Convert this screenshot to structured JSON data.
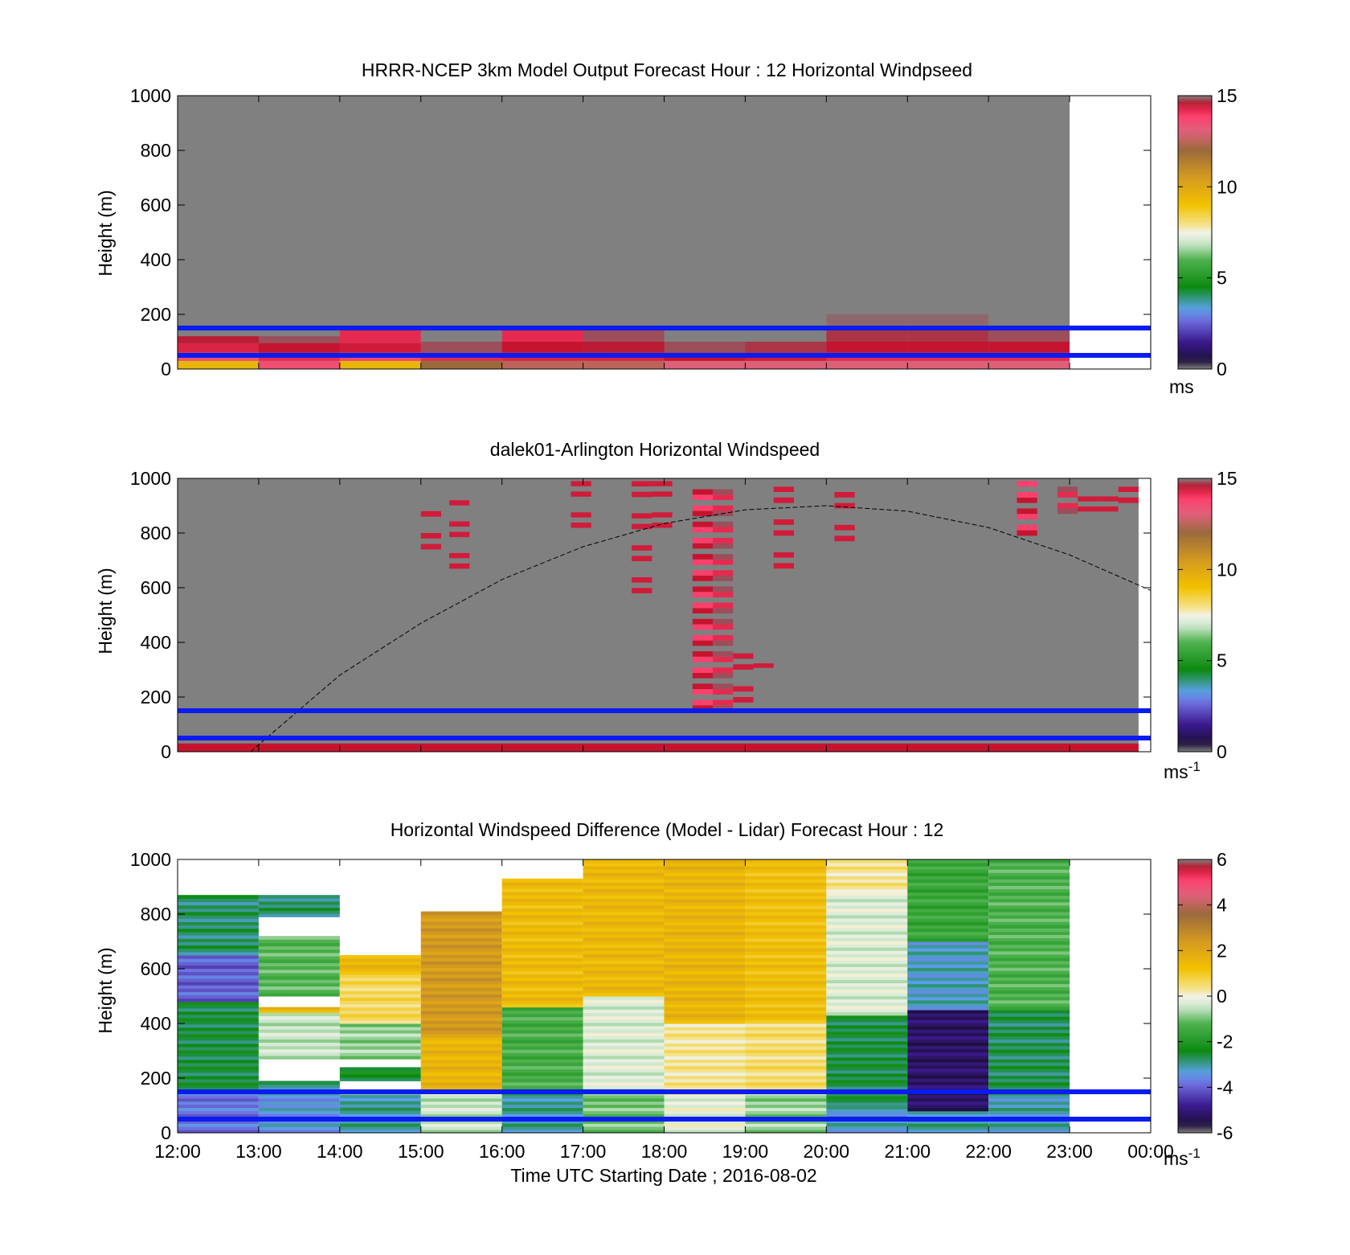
{
  "chart_data": [
    {
      "type": "heatmap",
      "title": "HRRR-NCEP 3km Model Output   Forecast Hour : 12 Horizontal Windpseed",
      "ylabel": "Height (m)",
      "xlabel": "",
      "ylim": [
        0,
        1000
      ],
      "yticks": [
        "0",
        "200",
        "400",
        "600",
        "800",
        "1000"
      ],
      "xlim_hours": [
        12,
        24
      ],
      "xticks": [],
      "colorbar": {
        "ticks": [
          "0",
          "5",
          "10",
          "15"
        ],
        "unit": "ms",
        "unit_sup": "",
        "range": [
          0,
          15
        ]
      },
      "reference_lines_m": [
        50,
        150
      ],
      "background_value": "no data above model levels (grey)",
      "model_columns": [
        {
          "hour": 12,
          "levels": [
            {
              "top": 30,
              "v": 9.5
            },
            {
              "top": 60,
              "v": 13.5
            },
            {
              "top": 95,
              "v": 14.3
            },
            {
              "top": 120,
              "v": 14.6
            }
          ]
        },
        {
          "hour": 13,
          "levels": [
            {
              "top": 30,
              "v": 13.5
            },
            {
              "top": 60,
              "v": 14.2
            },
            {
              "top": 95,
              "v": 14.5
            },
            {
              "top": 120,
              "v": 14.8
            }
          ]
        },
        {
          "hour": 14,
          "levels": [
            {
              "top": 30,
              "v": 9.5
            },
            {
              "top": 60,
              "v": 13.8
            },
            {
              "top": 95,
              "v": 14.4
            },
            {
              "top": 145,
              "v": 14.2
            }
          ]
        },
        {
          "hour": 15,
          "levels": [
            {
              "top": 30,
              "v": 12
            },
            {
              "top": 60,
              "v": 14.2
            },
            {
              "top": 100,
              "v": 14.8
            }
          ]
        },
        {
          "hour": 16,
          "levels": [
            {
              "top": 30,
              "v": 12.5
            },
            {
              "top": 60,
              "v": 14.3
            },
            {
              "top": 100,
              "v": 14.5
            },
            {
              "top": 145,
              "v": 14.2
            }
          ]
        },
        {
          "hour": 17,
          "levels": [
            {
              "top": 30,
              "v": 12.5
            },
            {
              "top": 60,
              "v": 14.3
            },
            {
              "top": 100,
              "v": 14.6
            },
            {
              "top": 145,
              "v": 14.8
            },
            {
              "top": 180,
              "v": 15
            }
          ]
        },
        {
          "hour": 18,
          "levels": [
            {
              "top": 30,
              "v": 13
            },
            {
              "top": 60,
              "v": 14.5
            },
            {
              "top": 100,
              "v": 14.8
            },
            {
              "top": 145,
              "v": 15
            }
          ]
        },
        {
          "hour": 19,
          "levels": [
            {
              "top": 30,
              "v": 13
            },
            {
              "top": 60,
              "v": 14.4
            },
            {
              "top": 100,
              "v": 14.7
            },
            {
              "top": 145,
              "v": 15
            }
          ]
        },
        {
          "hour": 20,
          "levels": [
            {
              "top": 30,
              "v": 13
            },
            {
              "top": 60,
              "v": 14.2
            },
            {
              "top": 100,
              "v": 14.5
            },
            {
              "top": 145,
              "v": 14.7
            },
            {
              "top": 200,
              "v": 14.9
            },
            {
              "top": 300,
              "v": 15
            }
          ]
        },
        {
          "hour": 21,
          "levels": [
            {
              "top": 30,
              "v": 13
            },
            {
              "top": 60,
              "v": 14.2
            },
            {
              "top": 100,
              "v": 14.5
            },
            {
              "top": 145,
              "v": 14.7
            },
            {
              "top": 200,
              "v": 14.9
            },
            {
              "top": 300,
              "v": 15
            }
          ]
        },
        {
          "hour": 22,
          "levels": [
            {
              "top": 30,
              "v": 13
            },
            {
              "top": 60,
              "v": 14.2
            },
            {
              "top": 100,
              "v": 14.5
            },
            {
              "top": 145,
              "v": 14.8
            }
          ]
        }
      ]
    },
    {
      "type": "heatmap",
      "title": "dalek01-Arlington  Horizontal Windspeed",
      "ylabel": "Height (m)",
      "xlabel": "",
      "ylim": [
        0,
        1000
      ],
      "yticks": [
        "0",
        "200",
        "400",
        "600",
        "800",
        "1000"
      ],
      "xlim_hours": [
        12,
        24
      ],
      "xticks": [],
      "colorbar": {
        "ticks": [
          "0",
          "5",
          "10",
          "15"
        ],
        "unit": "ms",
        "unit_sup": "-1",
        "range": [
          0,
          15
        ]
      },
      "reference_lines_m": [
        50,
        150
      ],
      "background": "missing data (grey), lidar ends at 23:50",
      "high_wind_streaks": [
        {
          "t0": 18.35,
          "t1": 18.6,
          "h0": 150,
          "h1": 980,
          "v": 14.5
        },
        {
          "t0": 18.6,
          "t1": 18.85,
          "h0": 150,
          "h1": 980,
          "v": 14.8
        },
        {
          "t0": 18.85,
          "t1": 19.1,
          "h0": 160,
          "h1": 380,
          "v": 15
        },
        {
          "t0": 19.1,
          "t1": 19.35,
          "h0": 290,
          "h1": 340,
          "v": 15
        },
        {
          "t0": 15.0,
          "t1": 15.25,
          "h0": 720,
          "h1": 880,
          "v": 15
        },
        {
          "t0": 15.35,
          "t1": 15.6,
          "h0": 650,
          "h1": 920,
          "v": 15
        },
        {
          "t0": 16.85,
          "t1": 17.1,
          "h0": 800,
          "h1": 990,
          "v": 15
        },
        {
          "t0": 17.6,
          "t1": 17.85,
          "h0": 560,
          "h1": 990,
          "v": 15
        },
        {
          "t0": 17.85,
          "t1": 18.1,
          "h0": 800,
          "h1": 990,
          "v": 15
        },
        {
          "t0": 19.35,
          "t1": 19.6,
          "h0": 650,
          "h1": 990,
          "v": 15
        },
        {
          "t0": 20.1,
          "t1": 20.35,
          "h0": 750,
          "h1": 990,
          "v": 15
        },
        {
          "t0": 22.35,
          "t1": 22.6,
          "h0": 790,
          "h1": 990,
          "v": 14.5
        },
        {
          "t0": 22.85,
          "t1": 23.1,
          "h0": 870,
          "h1": 990,
          "v": 14.8
        },
        {
          "t0": 23.1,
          "t1": 23.35,
          "h0": 860,
          "h1": 990,
          "v": 15
        },
        {
          "t0": 23.35,
          "t1": 23.6,
          "h0": 860,
          "h1": 990,
          "v": 15
        },
        {
          "t0": 23.6,
          "t1": 23.85,
          "h0": 890,
          "h1": 990,
          "v": 15
        }
      ],
      "surface_layer": {
        "h0": 0,
        "h1": 30,
        "v": 14.5
      },
      "dashed_curve": {
        "points_hour_m": [
          [
            12.9,
            0
          ],
          [
            14.0,
            280
          ],
          [
            15.0,
            470
          ],
          [
            16.0,
            630
          ],
          [
            17.0,
            750
          ],
          [
            18.0,
            835
          ],
          [
            19.0,
            885
          ],
          [
            20.0,
            900
          ],
          [
            21.0,
            880
          ],
          [
            22.0,
            820
          ],
          [
            23.0,
            720
          ],
          [
            24.0,
            590
          ]
        ]
      }
    },
    {
      "type": "heatmap",
      "title": "Horizontal Windspeed Difference (Model - Lidar) Forecast Hour : 12",
      "xlabel": "Time UTC  Starting Date ; 2016-08-02",
      "ylabel": "Height (m)",
      "ylim": [
        0,
        1000
      ],
      "yticks": [
        "0",
        "200",
        "400",
        "600",
        "800",
        "1000"
      ],
      "xticks": [
        "12:00",
        "13:00",
        "14:00",
        "15:00",
        "16:00",
        "17:00",
        "18:00",
        "19:00",
        "20:00",
        "21:00",
        "22:00",
        "23:00",
        "00:00"
      ],
      "colorbar": {
        "ticks": [
          "-6",
          "-4",
          "-2",
          "0",
          "2",
          "4",
          "6"
        ],
        "unit": "ms",
        "unit_sup": "-1",
        "range": [
          -6,
          6
        ]
      },
      "reference_lines_m": [
        50,
        150
      ],
      "hourly_columns": [
        {
          "hour": 12,
          "segments": [
            {
              "h0": 0,
              "h1": 150,
              "v": -3.8
            },
            {
              "h0": 150,
              "h1": 480,
              "v": -2.6
            },
            {
              "h0": 480,
              "h1": 650,
              "v": -4.0
            },
            {
              "h0": 650,
              "h1": 870,
              "v": -2.8
            }
          ]
        },
        {
          "hour": 13,
          "segments": [
            {
              "h0": 0,
              "h1": 150,
              "v": -3.4
            },
            {
              "h0": 150,
              "h1": 190,
              "v": -3
            },
            {
              "h0": 270,
              "h1": 440,
              "v": -0.5
            },
            {
              "h0": 440,
              "h1": 460,
              "v": 1.5
            },
            {
              "h0": 500,
              "h1": 720,
              "v": -1.2
            },
            {
              "h0": 790,
              "h1": 870,
              "v": -2.8
            }
          ]
        },
        {
          "hour": 14,
          "segments": [
            {
              "h0": 0,
              "h1": 140,
              "v": -3
            },
            {
              "h0": 190,
              "h1": 240,
              "v": -2.4
            },
            {
              "h0": 270,
              "h1": 400,
              "v": -0.8
            },
            {
              "h0": 400,
              "h1": 580,
              "v": 0.6
            },
            {
              "h0": 580,
              "h1": 650,
              "v": 1.5
            }
          ]
        },
        {
          "hour": 15,
          "segments": [
            {
              "h0": 0,
              "h1": 150,
              "v": -0.5
            },
            {
              "h0": 150,
              "h1": 350,
              "v": 1.6
            },
            {
              "h0": 350,
              "h1": 810,
              "v": 2.4
            }
          ]
        },
        {
          "hour": 16,
          "segments": [
            {
              "h0": 0,
              "h1": 150,
              "v": -3
            },
            {
              "h0": 150,
              "h1": 460,
              "v": -1.4
            },
            {
              "h0": 460,
              "h1": 930,
              "v": 1.4
            }
          ]
        },
        {
          "hour": 17,
          "segments": [
            {
              "h0": 0,
              "h1": 150,
              "v": -1
            },
            {
              "h0": 150,
              "h1": 500,
              "v": -0.3
            },
            {
              "h0": 500,
              "h1": 1000,
              "v": 1.5
            }
          ]
        },
        {
          "hour": 18,
          "segments": [
            {
              "h0": 0,
              "h1": 150,
              "v": -0.2
            },
            {
              "h0": 150,
              "h1": 400,
              "v": 0.3
            },
            {
              "h0": 400,
              "h1": 1000,
              "v": 1.6
            }
          ]
        },
        {
          "hour": 19,
          "segments": [
            {
              "h0": 0,
              "h1": 150,
              "v": -0.8
            },
            {
              "h0": 150,
              "h1": 400,
              "v": 0.5
            },
            {
              "h0": 400,
              "h1": 1000,
              "v": 1.3
            }
          ]
        },
        {
          "hour": 20,
          "segments": [
            {
              "h0": 0,
              "h1": 100,
              "v": -3.2
            },
            {
              "h0": 100,
              "h1": 430,
              "v": -2.6
            },
            {
              "h0": 430,
              "h1": 880,
              "v": -0.3
            },
            {
              "h0": 880,
              "h1": 1000,
              "v": 0.3
            }
          ]
        },
        {
          "hour": 21,
          "segments": [
            {
              "h0": 0,
              "h1": 80,
              "v": -3
            },
            {
              "h0": 80,
              "h1": 450,
              "v": -5.2
            },
            {
              "h0": 450,
              "h1": 700,
              "v": -3.2
            },
            {
              "h0": 700,
              "h1": 1000,
              "v": -1.6
            }
          ]
        },
        {
          "hour": 22,
          "segments": [
            {
              "h0": 0,
              "h1": 150,
              "v": -3.1
            },
            {
              "h0": 150,
              "h1": 450,
              "v": -2.7
            },
            {
              "h0": 450,
              "h1": 1000,
              "v": -1.3
            }
          ]
        }
      ]
    }
  ]
}
